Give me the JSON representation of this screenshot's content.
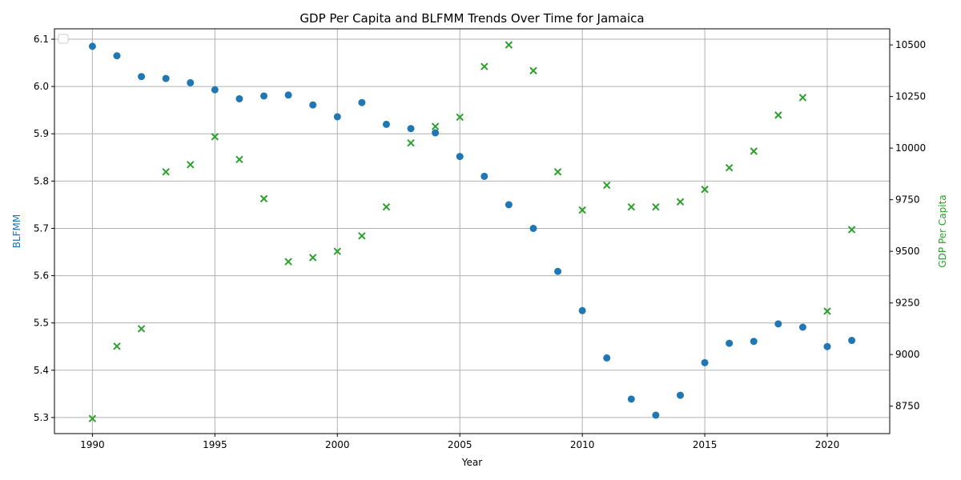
{
  "chart_data": {
    "type": "scatter",
    "title": "GDP Per Capita and BLFMM Trends Over Time for Jamaica",
    "xlabel": "Year",
    "ylabel_left": "BLFMM",
    "ylabel_right": "GDP Per Capita",
    "xlim": [
      1988.45,
      2022.55
    ],
    "ylim_left": [
      5.266,
      6.122
    ],
    "ylim_right": [
      8617,
      10578
    ],
    "x_ticks": [
      1990,
      1995,
      2000,
      2005,
      2010,
      2015,
      2020
    ],
    "y_ticks_left": [
      5.3,
      5.4,
      5.5,
      5.6,
      5.7,
      5.8,
      5.9,
      6.0,
      6.1
    ],
    "y_ticks_right": [
      8750,
      9000,
      9250,
      9500,
      9750,
      10000,
      10250,
      10500
    ],
    "grid": true,
    "legend": "upper-left (empty)",
    "colors": {
      "blfmm": "#1f77b4",
      "gdp": "#2ca02c"
    },
    "series": [
      {
        "key": "blfmm",
        "axis": "left",
        "marker": "circle",
        "x": [
          1990,
          1991,
          1992,
          1993,
          1994,
          1995,
          1996,
          1997,
          1998,
          1999,
          2000,
          2001,
          2002,
          2003,
          2004,
          2005,
          2006,
          2007,
          2008,
          2009,
          2010,
          2011,
          2012,
          2013,
          2014,
          2015,
          2016,
          2017,
          2018,
          2019,
          2020,
          2021
        ],
        "y": [
          6.085,
          6.065,
          6.021,
          6.017,
          6.008,
          5.993,
          5.974,
          5.98,
          5.982,
          5.961,
          5.936,
          5.966,
          5.92,
          5.911,
          5.902,
          5.852,
          5.81,
          5.75,
          5.7,
          5.609,
          5.526,
          5.426,
          5.339,
          5.305,
          5.347,
          5.416,
          5.457,
          5.461,
          5.498,
          5.491,
          5.45,
          5.463
        ]
      },
      {
        "key": "gdp",
        "axis": "right",
        "marker": "x",
        "x": [
          1990,
          1991,
          1992,
          1993,
          1994,
          1995,
          1996,
          1997,
          1998,
          1999,
          2000,
          2001,
          2002,
          2003,
          2004,
          2005,
          2006,
          2007,
          2008,
          2009,
          2010,
          2011,
          2012,
          2013,
          2014,
          2015,
          2016,
          2017,
          2018,
          2019,
          2020,
          2021
        ],
        "y": [
          8690,
          9040,
          9125,
          9885,
          9920,
          10055,
          9945,
          9755,
          9450,
          9470,
          9500,
          9575,
          9715,
          10025,
          10105,
          10150,
          10395,
          10500,
          10375,
          9885,
          9700,
          9820,
          9715,
          9715,
          9740,
          9800,
          9905,
          9985,
          10160,
          10245,
          9210,
          9605
        ]
      }
    ]
  }
}
